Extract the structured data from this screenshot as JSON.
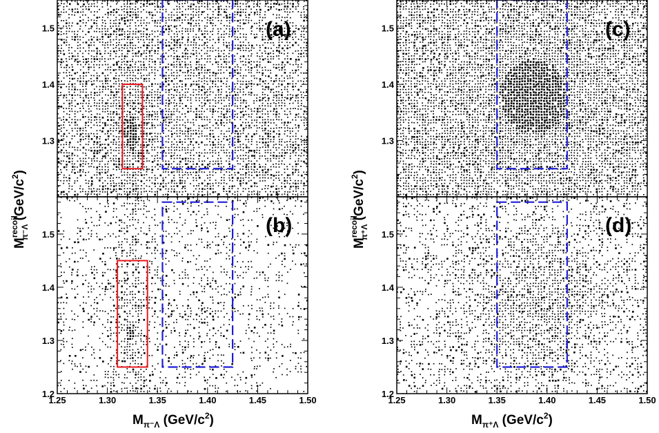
{
  "chart_data": [
    {
      "panel": "(a)",
      "type": "heatmap",
      "xlim": [
        1.25,
        1.5
      ],
      "ylim": [
        1.2,
        1.55
      ],
      "x_ticks": [],
      "y_ticks": [
        "1.3",
        "1.4",
        "1.5"
      ],
      "density": "dense",
      "peak": {
        "x": 1.322,
        "y": 1.315
      },
      "signal_box": {
        "x": [
          1.315,
          1.335
        ],
        "y": [
          1.25,
          1.4
        ],
        "color": "#e8161b"
      },
      "sideband_box": {
        "x": [
          1.355,
          1.425
        ],
        "y": [
          1.25,
          1.55
        ],
        "color": "#1c1cd6"
      }
    },
    {
      "panel": "(b)",
      "type": "heatmap",
      "xlim": [
        1.25,
        1.5
      ],
      "ylim": [
        1.2,
        1.57
      ],
      "x_ticks": [
        "1.25",
        "1.30",
        "1.35",
        "1.40",
        "1.45",
        "1.50"
      ],
      "y_ticks": [
        "1.2",
        "1.3",
        "1.4",
        "1.5"
      ],
      "density": "sparse",
      "peak": {
        "x": 1.322,
        "y": 1.315
      },
      "signal_box": {
        "x": [
          1.31,
          1.34
        ],
        "y": [
          1.25,
          1.45
        ],
        "color": "#e8161b"
      },
      "sideband_box": {
        "x": [
          1.355,
          1.425
        ],
        "y": [
          1.25,
          1.56
        ],
        "color": "#1c1cd6"
      }
    },
    {
      "panel": "(c)",
      "type": "heatmap",
      "xlim": [
        1.25,
        1.5
      ],
      "ylim": [
        1.2,
        1.55
      ],
      "x_ticks": [],
      "y_ticks": [
        "1.3",
        "1.4",
        "1.5"
      ],
      "density": "dense",
      "peak": {
        "x": 1.385,
        "y": 1.38
      },
      "sideband_box": {
        "x": [
          1.35,
          1.42
        ],
        "y": [
          1.25,
          1.55
        ],
        "color": "#1c1cd6"
      }
    },
    {
      "panel": "(d)",
      "type": "heatmap",
      "xlim": [
        1.25,
        1.5
      ],
      "ylim": [
        1.2,
        1.57
      ],
      "x_ticks": [
        "1.25",
        "1.30",
        "1.35",
        "1.40",
        "1.45",
        "1.50"
      ],
      "y_ticks": [
        "1.2",
        "1.3",
        "1.4",
        "1.5"
      ],
      "density": "sparse",
      "peak": {
        "x": 1.385,
        "y": 1.38
      },
      "sideband_box": {
        "x": [
          1.35,
          1.42
        ],
        "y": [
          1.25,
          1.56
        ],
        "color": "#1c1cd6"
      }
    }
  ],
  "labels": {
    "left_xlabel": {
      "main": "M",
      "sub": "π⁻Λ",
      "unit": " (GeV/c",
      "sup": "2",
      "close": ")"
    },
    "right_xlabel": {
      "main": "M",
      "sub": "π⁺Λ",
      "unit": " (GeV/c",
      "sup": "2",
      "close": ")"
    },
    "left_ylabel": {
      "main": "M",
      "sup": "recoil",
      "sub": "π⁻Λ",
      "unit": " (GeV/c",
      "sup2": "2",
      "close": ")"
    },
    "right_ylabel": {
      "main": "M",
      "sup": "recoil",
      "sub": "π⁺Λ",
      "unit": " (GeV/c",
      "sup2": "2",
      "close": ")"
    }
  }
}
